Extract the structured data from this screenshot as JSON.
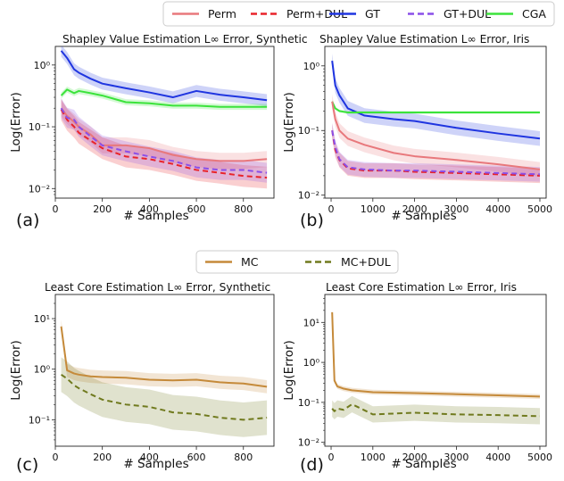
{
  "legend_top": [
    {
      "label": "Perm",
      "color": "#e8787c",
      "dash": false
    },
    {
      "label": "Perm+DUL",
      "color": "#e8232a",
      "dash": true
    },
    {
      "label": "GT",
      "color": "#1f35e0",
      "dash": false
    },
    {
      "label": "GT+DUL",
      "color": "#8a4fe8",
      "dash": true
    },
    {
      "label": "CGA",
      "color": "#3be33b",
      "dash": false
    }
  ],
  "legend_bottom": [
    {
      "label": "MC",
      "color": "#c58a3a",
      "dash": false
    },
    {
      "label": "MC+DUL",
      "color": "#707a1e",
      "dash": true
    }
  ],
  "panel_labels": [
    "(a)",
    "(b)",
    "(c)",
    "(d)"
  ],
  "chart_data": [
    {
      "type": "line",
      "title": "Shapley Value Estimation L∞ Error, Synthetic",
      "xlabel": "# Samples",
      "ylabel": "Log(Error)",
      "yscale": "log",
      "xlim": [
        0,
        930
      ],
      "ylim": [
        0.007,
        2.0
      ],
      "xticks": [
        0,
        200,
        400,
        600,
        800
      ],
      "yticks": [
        0.01,
        0.1,
        1.0
      ],
      "ytick_labels": [
        "10⁻²",
        "10⁻¹",
        "10⁰"
      ],
      "series": [
        {
          "name": "GT",
          "x": [
            25,
            50,
            80,
            100,
            150,
            200,
            300,
            400,
            500,
            600,
            700,
            800,
            900
          ],
          "y": [
            1.7,
            1.3,
            0.85,
            0.75,
            0.6,
            0.5,
            0.42,
            0.36,
            0.3,
            0.38,
            0.33,
            0.3,
            0.27
          ],
          "band": 0.25
        },
        {
          "name": "CGA",
          "x": [
            25,
            50,
            80,
            100,
            150,
            200,
            300,
            400,
            500,
            600,
            700,
            800,
            900
          ],
          "y": [
            0.32,
            0.4,
            0.35,
            0.38,
            0.35,
            0.32,
            0.25,
            0.24,
            0.22,
            0.22,
            0.21,
            0.21,
            0.21
          ],
          "band": 0.12
        },
        {
          "name": "Perm",
          "x": [
            25,
            50,
            80,
            100,
            150,
            200,
            300,
            400,
            500,
            600,
            700,
            800,
            900
          ],
          "y": [
            0.2,
            0.15,
            0.12,
            0.1,
            0.075,
            0.05,
            0.05,
            0.045,
            0.035,
            0.03,
            0.028,
            0.028,
            0.03
          ],
          "band": 0.35
        },
        {
          "name": "Perm+DUL",
          "x": [
            25,
            50,
            80,
            100,
            150,
            200,
            300,
            400,
            500,
            600,
            700,
            800,
            900
          ],
          "y": [
            0.19,
            0.13,
            0.1,
            0.08,
            0.06,
            0.045,
            0.033,
            0.03,
            0.025,
            0.02,
            0.018,
            0.016,
            0.015
          ],
          "band": 0.5
        },
        {
          "name": "GT+DUL",
          "x": [
            25,
            50,
            80,
            100,
            150,
            200,
            300,
            400,
            500,
            600,
            700,
            800,
            900
          ],
          "y": [
            0.2,
            0.14,
            0.13,
            0.1,
            0.07,
            0.05,
            0.04,
            0.033,
            0.028,
            0.022,
            0.02,
            0.02,
            0.018
          ],
          "band": 0.45
        }
      ]
    },
    {
      "type": "line",
      "title": "Shapley Value Estimation L∞ Error, Iris",
      "xlabel": "# Samples",
      "ylabel": "Log(Error)",
      "yscale": "log",
      "xlim": [
        -150,
        5150
      ],
      "ylim": [
        0.009,
        2.0
      ],
      "xticks": [
        0,
        1000,
        2000,
        3000,
        4000,
        5000
      ],
      "yticks": [
        0.01,
        0.1,
        1.0
      ],
      "ytick_labels": [
        "10⁻²",
        "10⁻¹",
        "10⁰"
      ],
      "series": [
        {
          "name": "GT",
          "x": [
            25,
            100,
            200,
            400,
            800,
            1500,
            2000,
            3000,
            4000,
            5000
          ],
          "y": [
            1.2,
            0.5,
            0.35,
            0.22,
            0.17,
            0.15,
            0.14,
            0.11,
            0.09,
            0.075
          ],
          "band": 0.3
        },
        {
          "name": "CGA",
          "x": [
            25,
            100,
            200,
            400,
            800,
            1500,
            2000,
            3000,
            4000,
            5000
          ],
          "y": [
            0.28,
            0.22,
            0.2,
            0.19,
            0.19,
            0.19,
            0.19,
            0.19,
            0.19,
            0.19
          ],
          "band": 0.05
        },
        {
          "name": "Perm",
          "x": [
            25,
            100,
            200,
            400,
            800,
            1500,
            2000,
            3000,
            4000,
            5000
          ],
          "y": [
            0.28,
            0.15,
            0.1,
            0.075,
            0.06,
            0.045,
            0.04,
            0.035,
            0.03,
            0.025
          ],
          "band": 0.3
        },
        {
          "name": "Perm+DUL",
          "x": [
            25,
            100,
            200,
            400,
            800,
            1500,
            2000,
            3000,
            4000,
            5000
          ],
          "y": [
            0.1,
            0.05,
            0.035,
            0.026,
            0.024,
            0.024,
            0.023,
            0.022,
            0.021,
            0.02
          ],
          "band": 0.3
        },
        {
          "name": "GT+DUL",
          "x": [
            25,
            100,
            200,
            400,
            800,
            1500,
            2000,
            3000,
            4000,
            5000
          ],
          "y": [
            0.1,
            0.055,
            0.036,
            0.027,
            0.025,
            0.024,
            0.024,
            0.023,
            0.022,
            0.021
          ],
          "band": 0.3
        }
      ]
    },
    {
      "type": "line",
      "title": "Least Core Estimation L∞ Error, Synthetic",
      "xlabel": "# Samples",
      "ylabel": "Log(Error)",
      "yscale": "log",
      "xlim": [
        0,
        930
      ],
      "ylim": [
        0.03,
        30
      ],
      "xticks": [
        0,
        200,
        400,
        600,
        800
      ],
      "yticks": [
        0.1,
        1.0,
        10.0
      ],
      "ytick_labels": [
        "10⁻¹",
        "10⁰",
        "10¹"
      ],
      "series": [
        {
          "name": "MC",
          "x": [
            25,
            50,
            80,
            100,
            150,
            200,
            300,
            400,
            500,
            600,
            700,
            800,
            900
          ],
          "y": [
            7.0,
            0.95,
            0.82,
            0.78,
            0.72,
            0.7,
            0.68,
            0.62,
            0.6,
            0.62,
            0.55,
            0.52,
            0.45
          ],
          "band": 0.35
        },
        {
          "name": "MC+DUL",
          "x": [
            25,
            50,
            80,
            100,
            150,
            200,
            300,
            400,
            500,
            600,
            700,
            800,
            900
          ],
          "y": [
            0.78,
            0.65,
            0.48,
            0.42,
            0.32,
            0.25,
            0.2,
            0.18,
            0.14,
            0.13,
            0.11,
            0.1,
            0.11
          ],
          "band": 1.2
        }
      ]
    },
    {
      "type": "line",
      "title": "Least Core Estimation L∞ Error, Iris",
      "xlabel": "# Samples",
      "ylabel": "Log(Error)",
      "yscale": "log",
      "xlim": [
        -150,
        5150
      ],
      "ylim": [
        0.008,
        50
      ],
      "xticks": [
        0,
        1000,
        2000,
        3000,
        4000,
        5000
      ],
      "yticks": [
        0.01,
        0.1,
        1.0,
        10.0
      ],
      "ytick_labels": [
        "10⁻²",
        "10⁻¹",
        "10⁰",
        "10¹"
      ],
      "series": [
        {
          "name": "MC",
          "x": [
            25,
            80,
            150,
            300,
            500,
            1000,
            2000,
            3000,
            4000,
            5000
          ],
          "y": [
            18.0,
            0.35,
            0.25,
            0.22,
            0.2,
            0.18,
            0.17,
            0.16,
            0.15,
            0.14
          ],
          "band": 0.15
        },
        {
          "name": "MC+DUL",
          "x": [
            25,
            80,
            150,
            300,
            500,
            1000,
            2000,
            3000,
            4000,
            5000
          ],
          "y": [
            0.07,
            0.06,
            0.07,
            0.065,
            0.09,
            0.05,
            0.055,
            0.05,
            0.048,
            0.045
          ],
          "band": 0.6
        }
      ]
    }
  ]
}
